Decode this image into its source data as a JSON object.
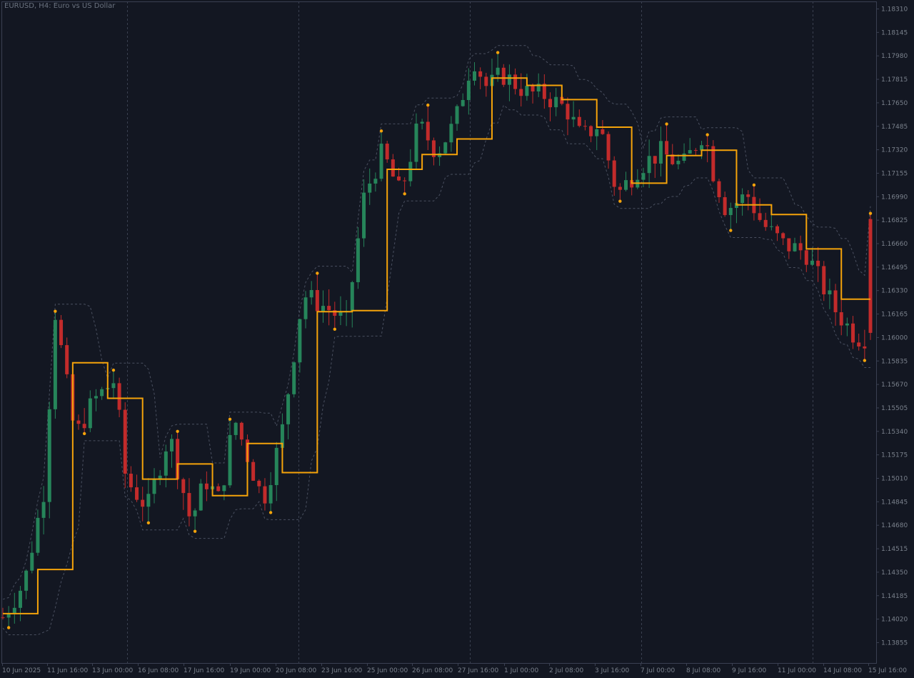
{
  "chart": {
    "symbol_caption": "EURUSD, H4:  Euro vs US Dollar",
    "colors": {
      "background": "#131722",
      "bull": "#26855a",
      "bear": "#c22b2b",
      "trail": "#f5a30a",
      "envelope": "#4a5060",
      "grid": "#3a4050",
      "frame": "#3a4052",
      "text": "#7a818c"
    }
  },
  "chart_data": {
    "type": "candlestick",
    "title": "EURUSD, H4:  Euro vs US Dollar",
    "price_labels": [
      "1.18310",
      "1.18145",
      "1.17980",
      "1.17815",
      "1.17650",
      "1.17485",
      "1.17320",
      "1.17155",
      "1.16990",
      "1.16825",
      "1.16660",
      "1.16495",
      "1.16330",
      "1.16165",
      "1.16000",
      "1.15835",
      "1.15670",
      "1.15505",
      "1.15340",
      "1.15175",
      "1.15010",
      "1.14845",
      "1.14680",
      "1.14515",
      "1.14350",
      "1.14185",
      "1.14020",
      "1.13855"
    ],
    "ylim": [
      1.1381,
      1.1838
    ],
    "time_labels": [
      "10 Jun 2025",
      "11 Jun 16:00",
      "13 Jun 00:00",
      "16 Jun 08:00",
      "17 Jun 16:00",
      "19 Jun 00:00",
      "20 Jun 08:00",
      "23 Jun 16:00",
      "25 Jun 00:00",
      "26 Jun 08:00",
      "27 Jun 16:00",
      "1 Jul 00:00",
      "2 Jul 08:00",
      "3 Jul 16:00",
      "7 Jul 00:00",
      "8 Jul 08:00",
      "9 Jul 16:00",
      "11 Jul 00:00",
      "14 Jul 08:00",
      "15 Jul 16:00"
    ],
    "bar_count": 150,
    "series": [
      {
        "type": "trailing_stop",
        "values": [
          1.1404,
          1.1404,
          1.1404,
          1.1406,
          1.1406,
          1.1406,
          1.1406,
          1.141,
          1.141,
          1.141,
          1.141,
          1.141,
          1.141,
          1.141,
          1.141,
          1.141,
          1.141,
          1.141,
          1.141,
          1.141,
          1.141,
          1.141,
          1.141,
          1.141,
          1.141,
          1.141,
          1.141,
          1.141,
          1.141,
          1.141,
          1.141,
          1.141,
          1.141,
          1.141,
          1.141,
          1.141,
          1.141,
          1.141,
          1.141,
          1.141,
          1.141,
          1.141,
          1.141,
          1.141,
          1.141,
          1.141,
          1.141,
          1.141,
          1.141,
          1.141,
          1.141,
          1.141,
          1.141,
          1.141,
          1.141,
          1.141,
          1.141,
          1.141,
          1.141,
          1.141,
          1.141,
          1.141,
          1.141,
          1.141,
          1.141,
          1.141,
          1.141,
          1.141,
          1.141,
          1.141,
          1.141,
          1.141,
          1.141,
          1.141,
          1.141,
          1.141,
          1.141,
          1.141,
          1.141,
          1.141,
          1.141,
          1.141,
          1.141,
          1.141,
          1.141,
          1.141,
          1.141,
          1.141,
          1.141,
          1.141,
          1.141,
          1.141,
          1.141,
          1.141,
          1.141,
          1.141,
          1.141,
          1.141,
          1.141,
          1.141,
          1.141,
          1.141,
          1.141,
          1.141,
          1.141,
          1.141,
          1.141,
          1.141,
          1.141,
          1.141,
          1.141,
          1.141,
          1.141,
          1.141,
          1.141,
          1.141,
          1.141,
          1.141,
          1.141,
          1.141,
          1.141,
          1.141,
          1.141,
          1.141,
          1.141,
          1.141,
          1.141,
          1.141,
          1.141,
          1.141,
          1.141,
          1.141,
          1.141,
          1.141,
          1.141,
          1.141,
          1.141,
          1.141,
          1.141,
          1.141,
          1.141,
          1.141,
          1.141,
          1.141,
          1.141,
          1.141,
          1.141,
          1.141,
          1.141,
          1.141
        ]
      }
    ]
  }
}
